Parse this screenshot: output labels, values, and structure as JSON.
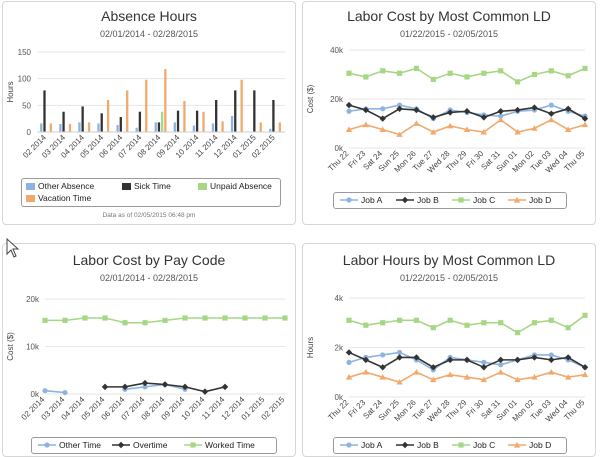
{
  "icons": {
    "cursor": "mouse-pointer-icon"
  },
  "chart_data": [
    {
      "type": "bar",
      "title": "Absence Hours",
      "subtitle": "02/01/2014 - 02/28/2015",
      "ylabel": "Hours",
      "ylim": [
        0,
        150
      ],
      "yticks": [
        "0",
        "50",
        "100",
        "150"
      ],
      "categories": [
        "02 2014",
        "03 2014",
        "04 2014",
        "05 2014",
        "06 2014",
        "07 2014",
        "08 2014",
        "09 2014",
        "10 2014",
        "11 2014",
        "12 2014",
        "01 2015",
        "02 2015"
      ],
      "series": [
        {
          "name": "Other Absence",
          "color": "#8db4e0",
          "values": [
            16,
            15,
            18,
            16,
            13,
            8,
            18,
            18,
            12,
            16,
            30,
            0,
            6
          ]
        },
        {
          "name": "Sick Time",
          "color": "#333333",
          "values": [
            78,
            38,
            48,
            35,
            28,
            38,
            18,
            40,
            40,
            60,
            78,
            78,
            60
          ]
        },
        {
          "name": "Unpaid Absence",
          "color": "#a6d785",
          "values": [
            0,
            0,
            0,
            0,
            0,
            0,
            38,
            0,
            0,
            0,
            0,
            0,
            0
          ]
        },
        {
          "name": "Vacation Time",
          "color": "#f2a96c",
          "values": [
            16,
            15,
            18,
            60,
            78,
            98,
            118,
            58,
            38,
            20,
            98,
            18,
            18
          ]
        }
      ],
      "footnote": "Data as of 02/05/2015 06:48 pm"
    },
    {
      "type": "line",
      "title": "Labor Cost by Most Common LD",
      "subtitle": "01/22/2015 - 02/05/2015",
      "ylabel": "Cost ($)",
      "ylim": [
        0,
        40000
      ],
      "yticks": [
        "0k",
        "20k",
        "40k"
      ],
      "categories": [
        "Thu 22",
        "Fri 23",
        "Sat 24",
        "Sun 25",
        "Mon 26",
        "Tue 27",
        "Wed 28",
        "Thu 29",
        "Fri 30",
        "Sat 31",
        "Sun 01",
        "Mon 02",
        "Tue 03",
        "Wed 04",
        "Thu 05"
      ],
      "series": [
        {
          "name": "Job A",
          "color": "#8db4e0",
          "marker": "circle",
          "values": [
            15000,
            16000,
            16000,
            17500,
            16000,
            12000,
            15500,
            14500,
            13500,
            13000,
            15000,
            15500,
            17500,
            15000,
            13000
          ]
        },
        {
          "name": "Job B",
          "color": "#333333",
          "marker": "diamond",
          "values": [
            17500,
            15500,
            12000,
            16000,
            15500,
            12500,
            14500,
            15000,
            12500,
            15000,
            15500,
            16500,
            14000,
            16000,
            12000
          ]
        },
        {
          "name": "Job C",
          "color": "#a6d785",
          "marker": "square",
          "values": [
            30500,
            29000,
            31500,
            30500,
            32500,
            28000,
            30500,
            29000,
            30500,
            31500,
            27000,
            30000,
            31500,
            29500,
            32500
          ]
        },
        {
          "name": "Job D",
          "color": "#f2a96c",
          "marker": "triangle",
          "values": [
            7500,
            9500,
            7500,
            5500,
            10000,
            6500,
            9000,
            7500,
            6500,
            11500,
            6500,
            8000,
            11500,
            7500,
            9500
          ]
        }
      ]
    },
    {
      "type": "line",
      "title": "Labor Cost by Pay Code",
      "subtitle": "02/01/2014 - 02/28/2015",
      "ylabel": "Cost ($)",
      "ylim": [
        0,
        20000
      ],
      "yticks": [
        "0k",
        "10k",
        "20k"
      ],
      "categories": [
        "02 2014",
        "03 2014",
        "04 2014",
        "05 2014",
        "06 2014",
        "07 2014",
        "08 2014",
        "09 2014",
        "10 2014",
        "11 2014",
        "12 2014",
        "01 2015",
        "02 2015"
      ],
      "series": [
        {
          "name": "Other Time",
          "color": "#8db4e0",
          "marker": "circle",
          "values": [
            700,
            300,
            null,
            null,
            1000,
            1500,
            2000,
            1000,
            null,
            null,
            null,
            null,
            null
          ]
        },
        {
          "name": "Overtime",
          "color": "#333333",
          "marker": "diamond",
          "values": [
            null,
            null,
            null,
            1500,
            1500,
            2300,
            2000,
            1500,
            500,
            1500,
            null,
            null,
            null
          ]
        },
        {
          "name": "Worked Time",
          "color": "#a6d785",
          "marker": "square",
          "values": [
            15500,
            15500,
            16000,
            16000,
            15000,
            15000,
            15500,
            16000,
            16000,
            16000,
            16000,
            16000,
            16000
          ]
        }
      ]
    },
    {
      "type": "line",
      "title": "Labor Hours by Most Common LD",
      "subtitle": "01/22/2015 - 02/05/2015",
      "ylabel": "Hours",
      "ylim": [
        0,
        4000
      ],
      "yticks": [
        "0k",
        "2k",
        "4k"
      ],
      "categories": [
        "Thu 22",
        "Fri 23",
        "Sat 24",
        "Sun 25",
        "Mon 26",
        "Tue 27",
        "Wed 28",
        "Thu 29",
        "Fri 30",
        "Sat 31",
        "Sun 01",
        "Mon 02",
        "Tue 03",
        "Wed 04",
        "Thu 05"
      ],
      "series": [
        {
          "name": "Job A",
          "color": "#8db4e0",
          "marker": "circle",
          "values": [
            1400,
            1600,
            1700,
            1800,
            1500,
            1100,
            1600,
            1500,
            1400,
            1300,
            1500,
            1700,
            1700,
            1500,
            1200
          ]
        },
        {
          "name": "Job B",
          "color": "#333333",
          "marker": "diamond",
          "values": [
            1800,
            1500,
            1200,
            1600,
            1600,
            1200,
            1500,
            1500,
            1200,
            1500,
            1500,
            1600,
            1500,
            1600,
            1200
          ]
        },
        {
          "name": "Job C",
          "color": "#a6d785",
          "marker": "square",
          "values": [
            3100,
            2900,
            3000,
            3100,
            3100,
            2800,
            3100,
            2900,
            3000,
            3000,
            2600,
            3000,
            3100,
            2800,
            3300
          ]
        },
        {
          "name": "Job D",
          "color": "#f2a96c",
          "marker": "triangle",
          "values": [
            800,
            1000,
            800,
            600,
            1000,
            700,
            900,
            800,
            700,
            1000,
            700,
            800,
            1000,
            800,
            900
          ]
        }
      ]
    }
  ]
}
